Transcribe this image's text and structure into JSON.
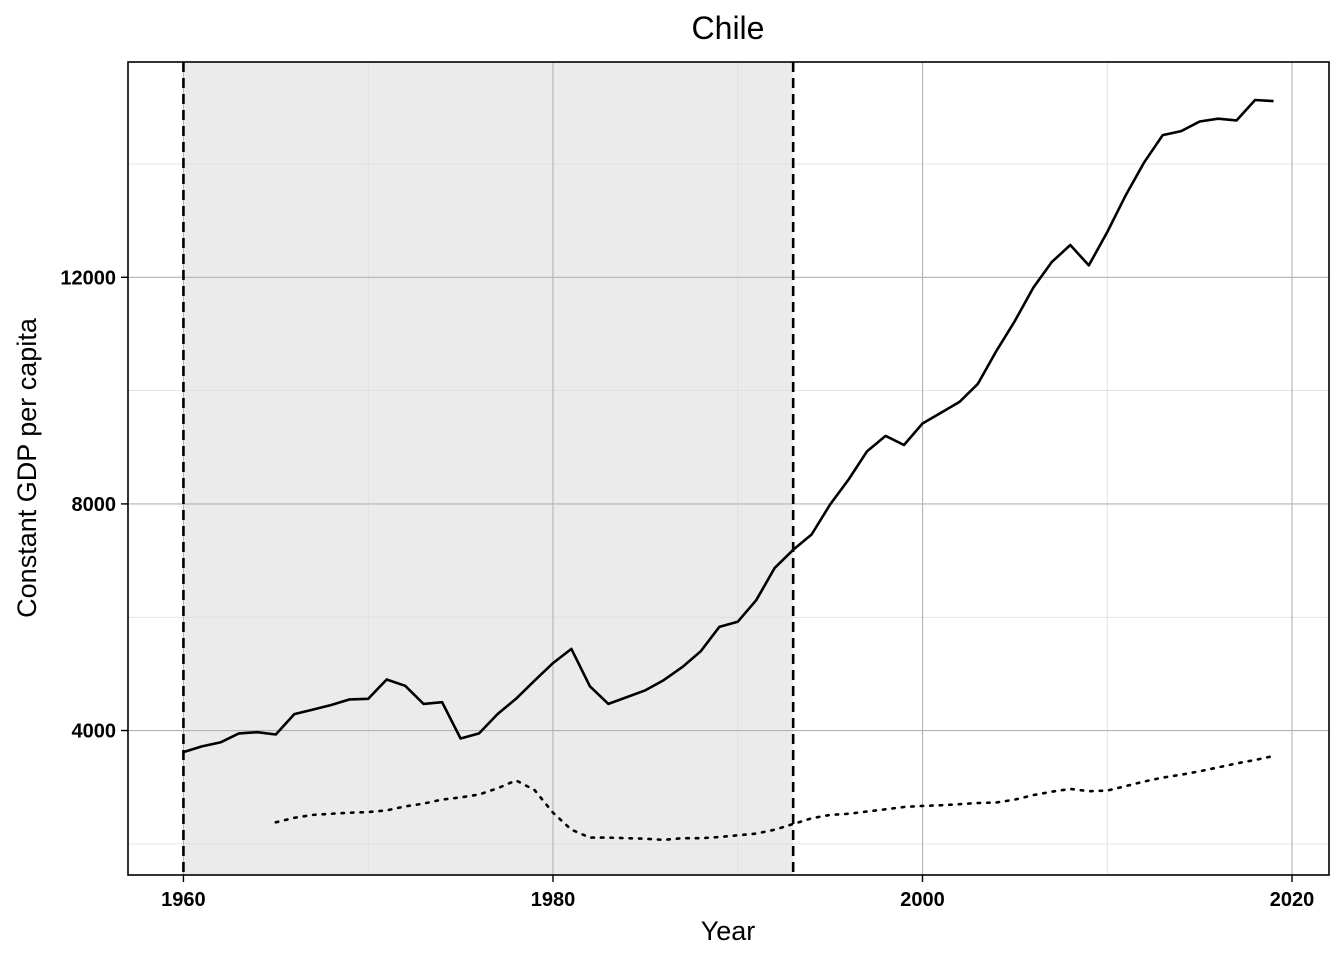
{
  "chart_data": {
    "type": "line",
    "title": "Chile",
    "xlabel": "Year",
    "ylabel": "Constant GDP per capita",
    "xlim": [
      1957,
      2022
    ],
    "ylim": [
      1450,
      15800
    ],
    "x_ticks": [
      1960,
      1980,
      2000,
      2020
    ],
    "y_ticks": [
      4000,
      8000,
      12000
    ],
    "x_tick_labels": [
      "1960",
      "1980",
      "2000",
      "2020"
    ],
    "y_tick_labels": [
      "4000",
      "8000",
      "12000"
    ],
    "grid": true,
    "legend": "none",
    "shaded_region": {
      "x_start": 1960,
      "x_end": 1993,
      "color": "#ebebeb"
    },
    "vertical_lines": [
      {
        "x": 1960,
        "style": "dashed"
      },
      {
        "x": 1993,
        "style": "dashed"
      }
    ],
    "series": [
      {
        "style": "solid",
        "color": "#000000",
        "x": [
          1960,
          1961,
          1962,
          1963,
          1964,
          1965,
          1966,
          1967,
          1968,
          1969,
          1970,
          1971,
          1972,
          1973,
          1974,
          1975,
          1976,
          1977,
          1978,
          1979,
          1980,
          1981,
          1982,
          1983,
          1984,
          1985,
          1986,
          1987,
          1988,
          1989,
          1990,
          1991,
          1992,
          1993,
          1994,
          1995,
          1996,
          1997,
          1998,
          1999,
          2000,
          2001,
          2002,
          2003,
          2004,
          2005,
          2006,
          2007,
          2008,
          2009,
          2010,
          2011,
          2012,
          2013,
          2014,
          2015,
          2016,
          2017,
          2018,
          2019
        ],
        "y": [
          3620,
          3720,
          3790,
          3950,
          3970,
          3930,
          4290,
          4370,
          4450,
          4550,
          4560,
          4900,
          4790,
          4470,
          4500,
          3860,
          3950,
          4290,
          4560,
          4880,
          5190,
          5440,
          4780,
          4470,
          4590,
          4710,
          4890,
          5120,
          5400,
          5830,
          5920,
          6300,
          6870,
          7190,
          7460,
          7990,
          8430,
          8930,
          9200,
          9040,
          9420,
          9610,
          9800,
          10120,
          10700,
          11230,
          11820,
          12270,
          12570,
          12210,
          12800,
          13450,
          14030,
          14510,
          14580,
          14750,
          14800,
          14770,
          15130,
          15110
        ]
      },
      {
        "style": "dotted",
        "color": "#000000",
        "x": [
          1965,
          1966,
          1967,
          1968,
          1969,
          1970,
          1971,
          1972,
          1973,
          1974,
          1975,
          1976,
          1977,
          1978,
          1979,
          1980,
          1981,
          1982,
          1983,
          1984,
          1985,
          1986,
          1987,
          1988,
          1989,
          1990,
          1991,
          1992,
          1993,
          1994,
          1995,
          1996,
          1997,
          1998,
          1999,
          2000,
          2001,
          2002,
          2003,
          2004,
          2005,
          2006,
          2007,
          2008,
          2009,
          2010,
          2011,
          2012,
          2013,
          2014,
          2015,
          2016,
          2017,
          2018,
          2019
        ],
        "y": [
          2380,
          2460,
          2510,
          2530,
          2550,
          2560,
          2590,
          2660,
          2710,
          2780,
          2820,
          2870,
          2980,
          3120,
          2950,
          2550,
          2250,
          2110,
          2110,
          2100,
          2090,
          2070,
          2100,
          2100,
          2120,
          2150,
          2180,
          2250,
          2350,
          2450,
          2510,
          2530,
          2570,
          2610,
          2650,
          2670,
          2680,
          2700,
          2720,
          2730,
          2780,
          2860,
          2920,
          2970,
          2930,
          2940,
          3020,
          3100,
          3170,
          3220,
          3280,
          3350,
          3420,
          3480,
          3550
        ]
      }
    ]
  }
}
